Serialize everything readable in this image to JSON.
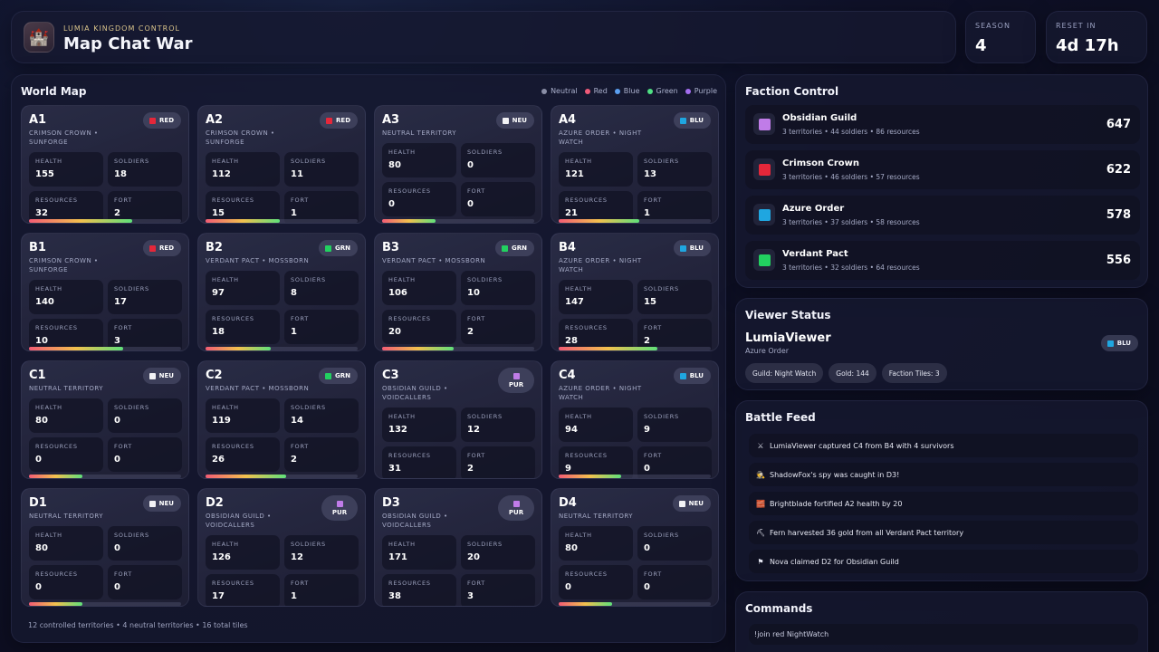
{
  "header": {
    "icon": "castle-icon",
    "subtitle": "LUMIA KINGDOM CONTROL",
    "title": "Map Chat War",
    "season_label": "SEASON",
    "season_value": "4",
    "reset_label": "RESET IN",
    "reset_value": "4d 17h"
  },
  "colors": {
    "neutral": "#f2f2f5",
    "red": "#e5273a",
    "blue": "#1fa6e0",
    "green": "#22d160",
    "purple": "#c07ce8",
    "legend_neutral": "#8a8ea6",
    "legend_red": "#ef5a78",
    "legend_blue": "#5b9ff0",
    "legend_green": "#4fe083",
    "legend_purple": "#a46ef0",
    "accent_gold": "#d9c38a"
  },
  "world_map": {
    "title": "World Map",
    "legend": [
      "Neutral",
      "Red",
      "Blue",
      "Green",
      "Purple"
    ],
    "stat_labels": {
      "health": "HEALTH",
      "soldiers": "SOLDIERS",
      "resources": "RESOURCES",
      "fort": "FORT"
    },
    "tiles": [
      {
        "id": "A1",
        "owner": "CRIMSON CROWN • SUNFORGE",
        "badge": "RED",
        "color": "red",
        "health": "155",
        "soldiers": "18",
        "resources": "32",
        "fort": "2",
        "health_pct": 68
      },
      {
        "id": "A2",
        "owner": "CRIMSON CROWN • SUNFORGE",
        "badge": "RED",
        "color": "red",
        "health": "112",
        "soldiers": "11",
        "resources": "15",
        "fort": "1",
        "health_pct": 49
      },
      {
        "id": "A3",
        "owner": "NEUTRAL TERRITORY",
        "badge": "NEU",
        "color": "neutral",
        "health": "80",
        "soldiers": "0",
        "resources": "0",
        "fort": "0",
        "health_pct": 35
      },
      {
        "id": "A4",
        "owner": "AZURE ORDER • NIGHT WATCH",
        "badge": "BLU",
        "color": "blue",
        "health": "121",
        "soldiers": "13",
        "resources": "21",
        "fort": "1",
        "health_pct": 53
      },
      {
        "id": "B1",
        "owner": "CRIMSON CROWN • SUNFORGE",
        "badge": "RED",
        "color": "red",
        "health": "140",
        "soldiers": "17",
        "resources": "10",
        "fort": "3",
        "health_pct": 62
      },
      {
        "id": "B2",
        "owner": "VERDANT PACT • MOSSBORN",
        "badge": "GRN",
        "color": "green",
        "health": "97",
        "soldiers": "8",
        "resources": "18",
        "fort": "1",
        "health_pct": 43
      },
      {
        "id": "B3",
        "owner": "VERDANT PACT • MOSSBORN",
        "badge": "GRN",
        "color": "green",
        "health": "106",
        "soldiers": "10",
        "resources": "20",
        "fort": "2",
        "health_pct": 47
      },
      {
        "id": "B4",
        "owner": "AZURE ORDER • NIGHT WATCH",
        "badge": "BLU",
        "color": "blue",
        "health": "147",
        "soldiers": "15",
        "resources": "28",
        "fort": "2",
        "health_pct": 65
      },
      {
        "id": "C1",
        "owner": "NEUTRAL TERRITORY",
        "badge": "NEU",
        "color": "neutral",
        "health": "80",
        "soldiers": "0",
        "resources": "0",
        "fort": "0",
        "health_pct": 35
      },
      {
        "id": "C2",
        "owner": "VERDANT PACT • MOSSBORN",
        "badge": "GRN",
        "color": "green",
        "health": "119",
        "soldiers": "14",
        "resources": "26",
        "fort": "2",
        "health_pct": 53
      },
      {
        "id": "C3",
        "owner": "OBSIDIAN GUILD • VOIDCALLERS",
        "badge": "PUR",
        "color": "purple",
        "health": "132",
        "soldiers": "12",
        "resources": "31",
        "fort": "2",
        "health_pct": null
      },
      {
        "id": "C4",
        "owner": "AZURE ORDER • NIGHT WATCH",
        "badge": "BLU",
        "color": "blue",
        "health": "94",
        "soldiers": "9",
        "resources": "9",
        "fort": "0",
        "health_pct": 41
      },
      {
        "id": "D1",
        "owner": "NEUTRAL TERRITORY",
        "badge": "NEU",
        "color": "neutral",
        "health": "80",
        "soldiers": "0",
        "resources": "0",
        "fort": "0",
        "health_pct": 35
      },
      {
        "id": "D2",
        "owner": "OBSIDIAN GUILD • VOIDCALLERS",
        "badge": "PUR",
        "color": "purple",
        "health": "126",
        "soldiers": "12",
        "resources": "17",
        "fort": "1",
        "health_pct": null
      },
      {
        "id": "D3",
        "owner": "OBSIDIAN GUILD • VOIDCALLERS",
        "badge": "PUR",
        "color": "purple",
        "health": "171",
        "soldiers": "20",
        "resources": "38",
        "fort": "3",
        "health_pct": null
      },
      {
        "id": "D4",
        "owner": "NEUTRAL TERRITORY",
        "badge": "NEU",
        "color": "neutral",
        "health": "80",
        "soldiers": "0",
        "resources": "0",
        "fort": "0",
        "health_pct": 35
      }
    ],
    "footer": "12 controlled territories • 4 neutral territories • 16 total tiles"
  },
  "faction_control": {
    "title": "Faction Control",
    "factions": [
      {
        "name": "Obsidian Guild",
        "meta": "3 territories • 44 soldiers • 86 resources",
        "score": "647",
        "color": "purple"
      },
      {
        "name": "Crimson Crown",
        "meta": "3 territories • 46 soldiers • 57 resources",
        "score": "622",
        "color": "red"
      },
      {
        "name": "Azure Order",
        "meta": "3 territories • 37 soldiers • 58 resources",
        "score": "578",
        "color": "blue"
      },
      {
        "name": "Verdant Pact",
        "meta": "3 territories • 32 soldiers • 64 resources",
        "score": "556",
        "color": "green"
      }
    ]
  },
  "viewer_status": {
    "title": "Viewer Status",
    "name": "LumiaViewer",
    "faction": "Azure Order",
    "badge": "BLU",
    "chips": [
      "Guild: Night Watch",
      "Gold: 144",
      "Faction Tiles: 3"
    ]
  },
  "battle_feed": {
    "title": "Battle Feed",
    "items": [
      {
        "icon": "crossed-swords-icon",
        "glyph": "⚔",
        "text": "LumiaViewer captured C4 from B4 with 4 survivors"
      },
      {
        "icon": "spy-icon",
        "glyph": "🕵",
        "text": "ShadowFox's spy was caught in D3!"
      },
      {
        "icon": "brick-wall-icon",
        "glyph": "🧱",
        "text": "Brightblade fortified A2 health by 20"
      },
      {
        "icon": "pickaxe-icon",
        "glyph": "⛏",
        "text": "Fern harvested 36 gold from all Verdant Pact territory"
      },
      {
        "icon": "flag-icon",
        "glyph": "⚑",
        "text": "Nova claimed D2 for Obsidian Guild"
      }
    ]
  },
  "commands": {
    "title": "Commands",
    "items": [
      "!join red NightWatch"
    ]
  }
}
